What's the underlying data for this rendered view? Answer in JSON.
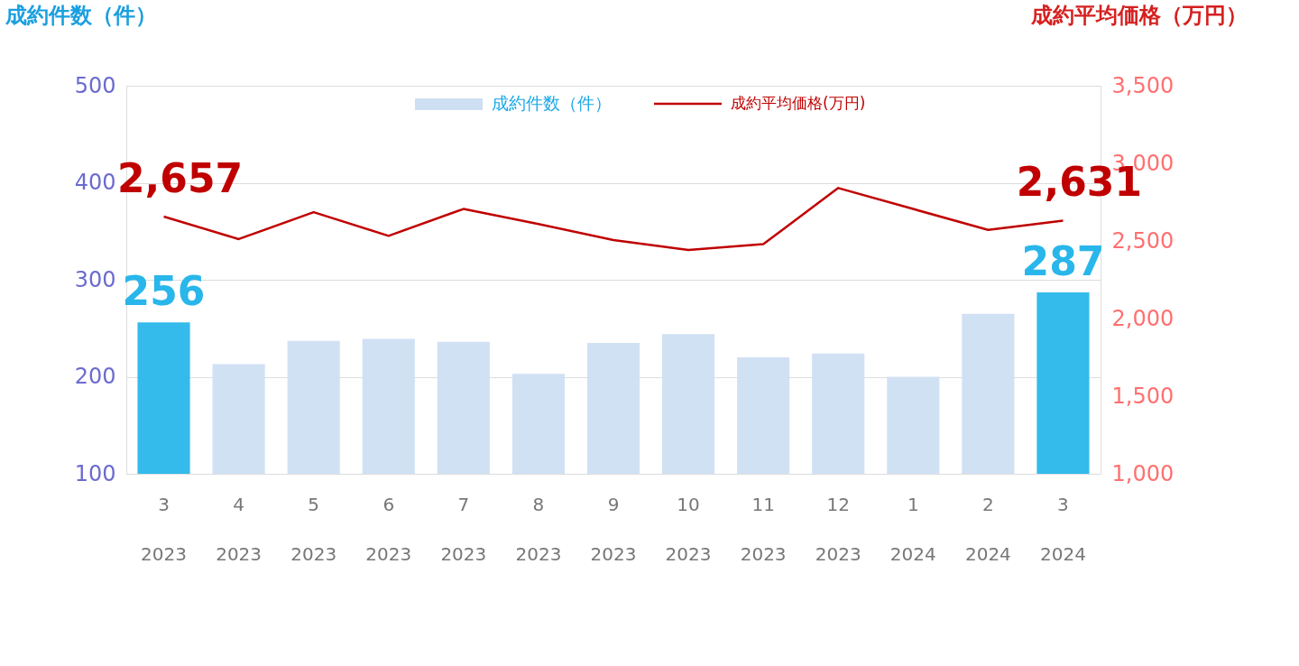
{
  "chart_data": {
    "type": "bar",
    "categories": [
      "3\n2023",
      "4\n2023",
      "5\n2023",
      "6\n2023",
      "7\n2023",
      "8\n2023",
      "9\n2023",
      "10\n2023",
      "11\n2023",
      "12\n2023",
      "1\n2024",
      "2\n2024",
      "3\n2024"
    ],
    "ylabel": "成約件数（件）",
    "y2label": "成約平均価格（万円）",
    "series": [
      {
        "name": "成約件数（件）",
        "color": "#cfdff3",
        "colors": [
          "#29b6ea",
          "#cfdff3",
          "#cfdff3",
          "#cfdff3",
          "#cfdff3",
          "#cfdff3",
          "#cfdff3",
          "#cfdff3",
          "#cfdff3",
          "#cfdff3",
          "#cfdff3",
          "#cfdff3",
          "#29b6ea"
        ],
        "values": [
          256,
          213,
          237,
          239,
          236,
          203,
          235,
          244,
          220,
          224,
          200,
          265,
          287
        ],
        "value_labels": [
          "256",
          null,
          null,
          null,
          null,
          null,
          null,
          null,
          null,
          null,
          null,
          null,
          "287"
        ]
      },
      {
        "name": "成約平均価格(万円)",
        "type": "line",
        "axis": "y2",
        "color": "#c00000",
        "values": [
          2657,
          2512,
          2685,
          2533,
          2706,
          2609,
          2506,
          2442,
          2479,
          2841,
          2706,
          2571,
          2631
        ],
        "value_labels": [
          "2,657",
          null,
          null,
          null,
          null,
          null,
          null,
          null,
          null,
          null,
          null,
          null,
          "2,631"
        ]
      }
    ],
    "ylim": [
      100,
      500
    ],
    "yticks": [
      100,
      200,
      300,
      400,
      500
    ],
    "y2lim": [
      1000,
      3500
    ],
    "y2ticks": [
      {
        "value": 1000,
        "label": "1,000"
      },
      {
        "value": 1500,
        "label": "1,500"
      },
      {
        "value": 2000,
        "label": "2,000"
      },
      {
        "value": 2500,
        "label": "2,500"
      },
      {
        "value": 3000,
        "label": "3,000"
      },
      {
        "value": 3500,
        "label": "3,500"
      }
    ],
    "grid": "y",
    "legend": "top"
  }
}
